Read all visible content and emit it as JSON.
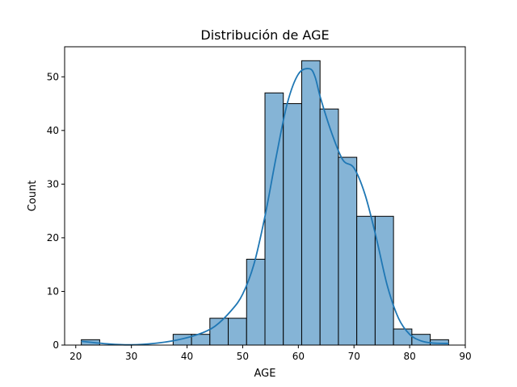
{
  "chart_data": {
    "type": "bar",
    "title": "Distribución de AGE",
    "xlabel": "AGE",
    "ylabel": "Count",
    "xlim": [
      18,
      90
    ],
    "ylim": [
      0,
      55.6
    ],
    "xticks": [
      20,
      30,
      40,
      50,
      60,
      70,
      80,
      90
    ],
    "yticks": [
      0,
      10,
      20,
      30,
      40,
      50
    ],
    "grid": false,
    "bin_edges": [
      21.0,
      24.3,
      27.6,
      30.9,
      34.2,
      37.5,
      40.8,
      44.1,
      47.4,
      50.7,
      54.0,
      57.3,
      60.6,
      63.9,
      67.2,
      70.5,
      73.8,
      77.1,
      80.4,
      83.7,
      87.0
    ],
    "values": [
      1,
      0,
      0,
      0,
      0,
      2,
      2,
      5,
      5,
      16,
      47,
      45,
      53,
      44,
      35,
      24,
      24,
      3,
      2,
      1
    ],
    "kde": {
      "x": [
        21,
        26,
        30,
        34,
        38,
        42,
        45,
        48,
        50,
        52,
        54,
        56,
        58,
        60,
        62,
        63,
        64,
        66,
        68,
        70,
        72,
        74,
        76,
        78,
        80,
        82,
        84,
        87
      ],
      "y": [
        0.7,
        0.2,
        0.05,
        0.3,
        0.9,
        2.0,
        3.5,
        6.5,
        9.5,
        15.0,
        24.0,
        35.0,
        45.0,
        50.5,
        51.5,
        50.0,
        46.0,
        39.5,
        34.5,
        33.0,
        28.0,
        20.0,
        11.0,
        5.0,
        2.0,
        0.8,
        0.4,
        0.3
      ]
    },
    "colors": {
      "bar_fill": "#85b4d6",
      "bar_edge": "#000000",
      "kde_line": "#1f77b4"
    }
  }
}
